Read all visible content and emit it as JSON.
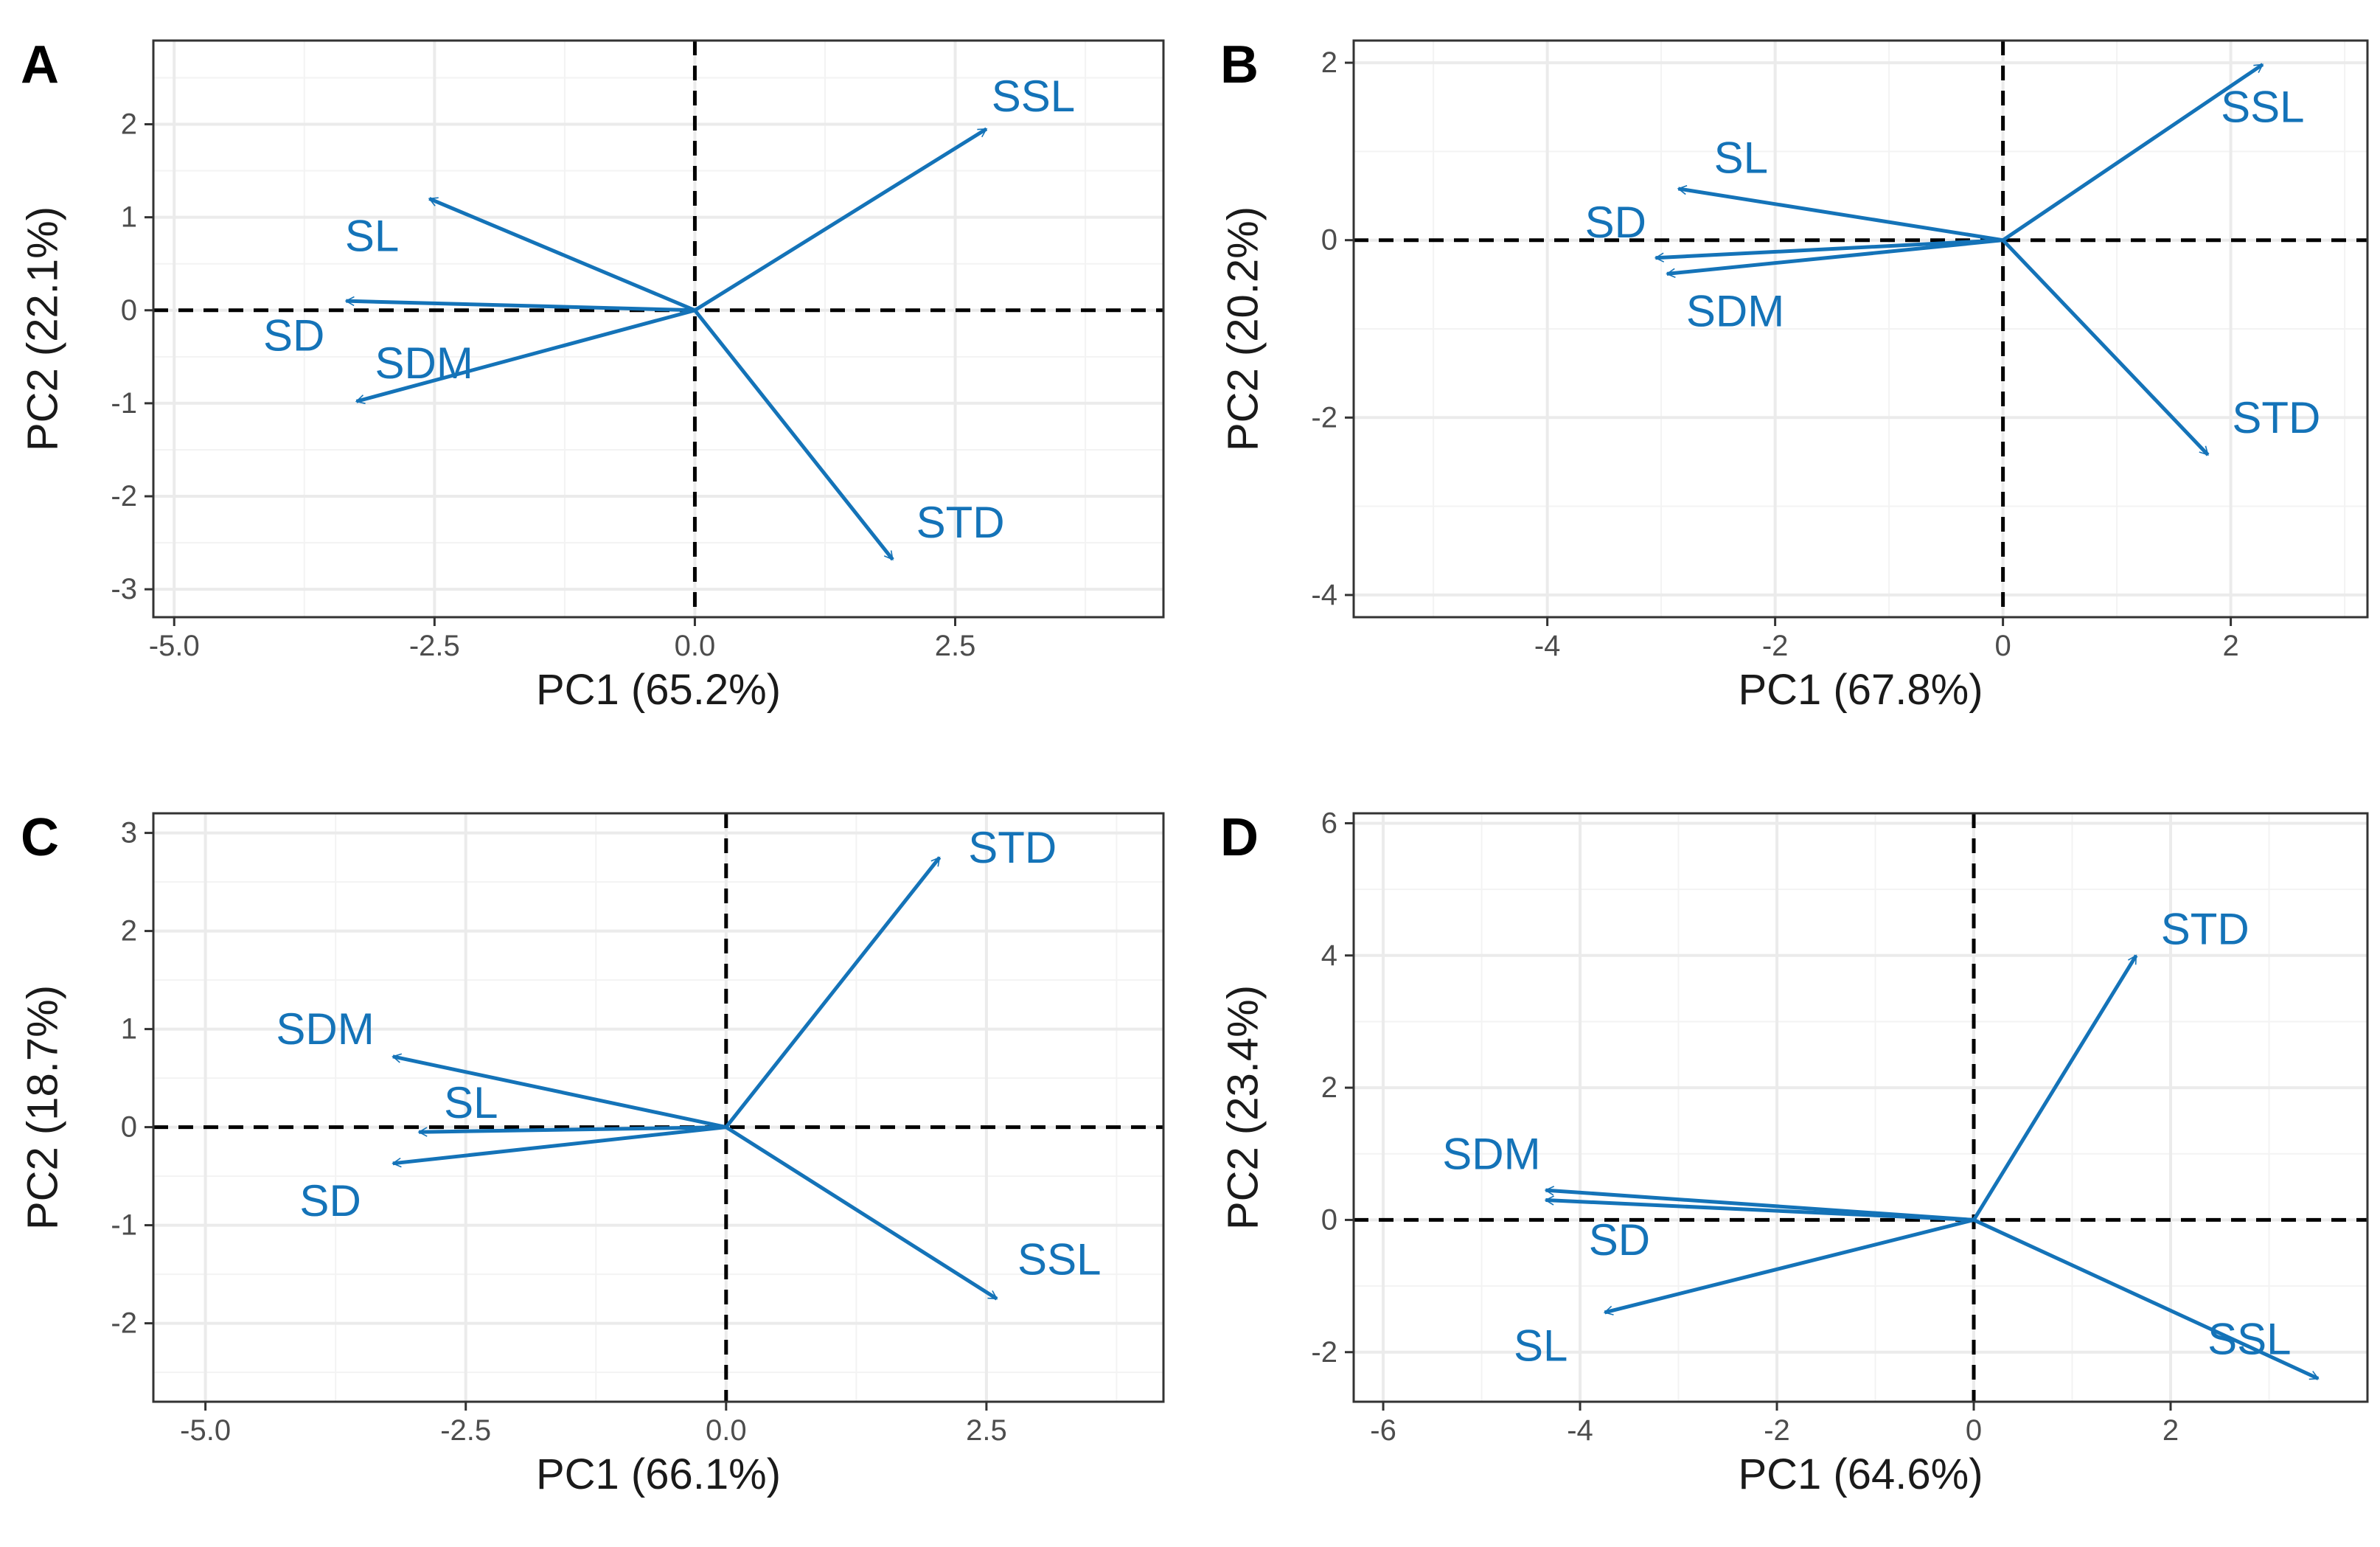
{
  "figure": {
    "type": "PCA biplot grid",
    "colors": {
      "vector": "#1473b8",
      "panel_border": "#333333",
      "grid_major": "#ebebeb",
      "grid_minor": "#f3f3f3",
      "zero_line": "#000000"
    }
  },
  "chart_data": [
    {
      "type": "scatter",
      "panel": "A",
      "xlabel": "PC1 (65.2%)",
      "ylabel": "PC2 (22.1%)",
      "xlim": [
        -5.2,
        4.5
      ],
      "ylim": [
        -3.3,
        2.9
      ],
      "xticks": [
        -5.0,
        -2.5,
        0.0,
        2.5
      ],
      "xtick_labels": [
        "-5.0",
        "-2.5",
        "0.0",
        "2.5"
      ],
      "yticks": [
        -3,
        -2,
        -1,
        0,
        1,
        2
      ],
      "ytick_labels": [
        "-3",
        "-2",
        "-1",
        "0",
        "1",
        "2"
      ],
      "vectors": [
        {
          "name": "SSL",
          "x": 2.8,
          "y": 1.95,
          "label_x": 3.25,
          "label_y": 2.3
        },
        {
          "name": "SL",
          "x": -2.55,
          "y": 1.2,
          "label_x": -3.1,
          "label_y": 0.8
        },
        {
          "name": "SD",
          "x": -3.35,
          "y": 0.1,
          "label_x": -3.85,
          "label_y": -0.27
        },
        {
          "name": "SDM",
          "x": -3.25,
          "y": -0.98,
          "label_x": -2.6,
          "label_y": -0.57
        },
        {
          "name": "STD",
          "x": 1.9,
          "y": -2.68,
          "label_x": 2.55,
          "label_y": -2.28
        }
      ]
    },
    {
      "type": "scatter",
      "panel": "B",
      "xlabel": "PC1 (67.8%)",
      "ylabel": "PC2 (20.2%)",
      "xlim": [
        -5.7,
        3.2
      ],
      "ylim": [
        -4.25,
        2.25
      ],
      "xticks": [
        -4,
        -2,
        0,
        2
      ],
      "xtick_labels": [
        "-4",
        "-2",
        "0",
        "2"
      ],
      "yticks": [
        -4,
        -2,
        0,
        2
      ],
      "ytick_labels": [
        "-4",
        "-2",
        "0",
        "2"
      ],
      "vectors": [
        {
          "name": "SSL",
          "x": 2.28,
          "y": 1.98,
          "label_x": 2.28,
          "label_y": 1.5
        },
        {
          "name": "SL",
          "x": -2.85,
          "y": 0.58,
          "label_x": -2.3,
          "label_y": 0.93
        },
        {
          "name": "SD",
          "x": -3.05,
          "y": -0.2,
          "label_x": -3.4,
          "label_y": 0.2
        },
        {
          "name": "SDM",
          "x": -2.95,
          "y": -0.38,
          "label_x": -2.35,
          "label_y": -0.8
        },
        {
          "name": "STD",
          "x": 1.8,
          "y": -2.42,
          "label_x": 2.4,
          "label_y": -2.0
        }
      ]
    },
    {
      "type": "scatter",
      "panel": "C",
      "xlabel": "PC1 (66.1%)",
      "ylabel": "PC2 (18.7%)",
      "xlim": [
        -5.5,
        4.2
      ],
      "ylim": [
        -2.8,
        3.2
      ],
      "xticks": [
        -5.0,
        -2.5,
        0.0,
        2.5
      ],
      "xtick_labels": [
        "-5.0",
        "-2.5",
        "0.0",
        "2.5"
      ],
      "yticks": [
        -2,
        -1,
        0,
        1,
        2,
        3
      ],
      "ytick_labels": [
        "-2",
        "-1",
        "0",
        "1",
        "2",
        "3"
      ],
      "vectors": [
        {
          "name": "STD",
          "x": 2.05,
          "y": 2.75,
          "label_x": 2.75,
          "label_y": 2.85
        },
        {
          "name": "SDM",
          "x": -3.2,
          "y": 0.72,
          "label_x": -3.85,
          "label_y": 1.0
        },
        {
          "name": "SL",
          "x": -2.95,
          "y": -0.05,
          "label_x": -2.45,
          "label_y": 0.25
        },
        {
          "name": "SD",
          "x": -3.2,
          "y": -0.37,
          "label_x": -3.8,
          "label_y": -0.75
        },
        {
          "name": "SSL",
          "x": 2.6,
          "y": -1.75,
          "label_x": 3.2,
          "label_y": -1.35
        }
      ]
    },
    {
      "type": "scatter",
      "panel": "D",
      "xlabel": "PC1 (64.6%)",
      "ylabel": "PC2 (23.4%)",
      "xlim": [
        -6.3,
        4.0
      ],
      "ylim": [
        -2.75,
        6.15
      ],
      "xticks": [
        -6,
        -4,
        -2,
        0,
        2
      ],
      "xtick_labels": [
        "-6",
        "-4",
        "-2",
        "0",
        "2"
      ],
      "yticks": [
        -2,
        0,
        2,
        4,
        6
      ],
      "ytick_labels": [
        "-2",
        "0",
        "2",
        "4",
        "6"
      ],
      "vectors": [
        {
          "name": "STD",
          "x": 1.65,
          "y": 4.0,
          "label_x": 2.35,
          "label_y": 4.4
        },
        {
          "name": "SDM",
          "x": -4.35,
          "y": 0.45,
          "label_x": -4.9,
          "label_y": 1.0
        },
        {
          "name": "SD",
          "x": -4.35,
          "y": 0.3,
          "label_x": -3.6,
          "label_y": -0.3
        },
        {
          "name": "SL",
          "x": -3.75,
          "y": -1.4,
          "label_x": -4.4,
          "label_y": -1.9
        },
        {
          "name": "SSL",
          "x": 3.5,
          "y": -2.4,
          "label_x": 2.8,
          "label_y": -1.8
        }
      ]
    }
  ]
}
